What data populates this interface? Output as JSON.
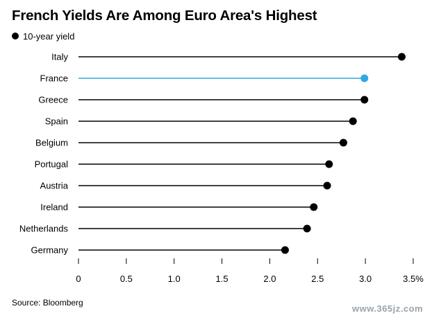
{
  "title": "French Yields Are Among Euro Area's Highest",
  "source": "Source: Bloomberg",
  "watermark": "www.365jz.com",
  "colors": {
    "default": "#000000",
    "highlight": "#2fa9e1",
    "axis": "#000000",
    "text": "#000000"
  },
  "chart_data": {
    "type": "lollipop",
    "title": "French Yields Are Among Euro Area's Highest",
    "series": [
      {
        "name": "10-year yield",
        "values": [
          3.38,
          2.99,
          2.99,
          2.87,
          2.77,
          2.62,
          2.6,
          2.46,
          2.39,
          2.16
        ]
      }
    ],
    "categories": [
      "Italy",
      "France",
      "Greece",
      "Spain",
      "Belgium",
      "Portugal",
      "Austria",
      "Ireland",
      "Netherlands",
      "Germany"
    ],
    "highlight": "France",
    "xlim": [
      0,
      3.5
    ],
    "xticks": [
      "0",
      "0.5",
      "1.0",
      "1.5",
      "2.0",
      "2.5",
      "3.0",
      "3.5%"
    ],
    "legend_position": "top-left",
    "grid": false
  }
}
